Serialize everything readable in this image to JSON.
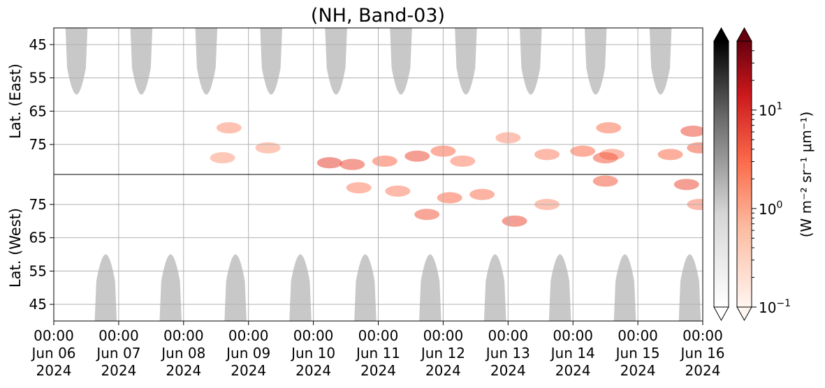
{
  "chart_data": {
    "type": "heatmap",
    "title": "(NH, Band-03)",
    "x_axis": {
      "range": [
        "2024-06-06 00:00",
        "2024-06-16 00:00"
      ],
      "ticks": [
        {
          "line1": "00:00",
          "line2": "Jun 06",
          "line3": "2024"
        },
        {
          "line1": "00:00",
          "line2": "Jun 07",
          "line3": "2024"
        },
        {
          "line1": "00:00",
          "line2": "Jun 08",
          "line3": "2024"
        },
        {
          "line1": "00:00",
          "line2": "Jun 09",
          "line3": "2024"
        },
        {
          "line1": "00:00",
          "line2": "Jun 10",
          "line3": "2024"
        },
        {
          "line1": "00:00",
          "line2": "Jun 11",
          "line3": "2024"
        },
        {
          "line1": "00:00",
          "line2": "Jun 12",
          "line3": "2024"
        },
        {
          "line1": "00:00",
          "line2": "Jun 13",
          "line3": "2024"
        },
        {
          "line1": "00:00",
          "line2": "Jun 14",
          "line3": "2024"
        },
        {
          "line1": "00:00",
          "line2": "Jun 15",
          "line3": "2024"
        },
        {
          "line1": "00:00",
          "line2": "Jun 16",
          "line3": "2024"
        }
      ]
    },
    "panels": [
      {
        "name": "east",
        "ylabel": "Lat. (East)",
        "ylim": [
          40,
          84
        ],
        "ticks": [
          "45",
          "55",
          "65",
          "75"
        ],
        "tick_values": [
          45,
          55,
          65,
          75
        ]
      },
      {
        "name": "west",
        "ylabel": "Lat. (West)",
        "ylim": [
          84,
          40
        ],
        "ticks": [
          "75",
          "65",
          "55",
          "45"
        ],
        "tick_values": [
          75,
          65,
          55,
          45
        ]
      }
    ],
    "grid": true,
    "colorbar": {
      "label": "(W m⁻² sr⁻¹ μm⁻¹)",
      "scale": "log",
      "range": [
        0.1,
        50
      ],
      "tick_labels": [
        {
          "base": "10",
          "exp": "1",
          "value": 10
        },
        {
          "base": "10",
          "exp": "0",
          "value": 1
        },
        {
          "base": "10",
          "exp": "−1",
          "value": 0.1
        }
      ],
      "colormaps": [
        "Greys",
        "Reds"
      ],
      "extend": "both"
    },
    "dark_regions": {
      "color": "#c8c8c8",
      "east_days": [
        0.35,
        1.35,
        2.35,
        3.35,
        4.35,
        5.35,
        6.35,
        7.35,
        8.35,
        9.35
      ],
      "west_days": [
        0.8,
        1.8,
        2.8,
        3.8,
        4.8,
        5.8,
        6.8,
        7.8,
        8.8,
        9.8
      ],
      "polar_edge_lat": 60,
      "half_width_days": 0.17
    },
    "emission_clusters": [
      {
        "panel": "east",
        "day": 4.25,
        "lat": 80.5,
        "value": 6
      },
      {
        "panel": "east",
        "day": 4.6,
        "lat": 81,
        "value": 5
      },
      {
        "panel": "east",
        "day": 5.1,
        "lat": 80,
        "value": 3
      },
      {
        "panel": "east",
        "day": 5.6,
        "lat": 78.5,
        "value": 5
      },
      {
        "panel": "east",
        "day": 6.0,
        "lat": 77,
        "value": 3
      },
      {
        "panel": "east",
        "day": 6.3,
        "lat": 80,
        "value": 2
      },
      {
        "panel": "east",
        "day": 7.0,
        "lat": 73,
        "value": 1.5
      },
      {
        "panel": "east",
        "day": 7.6,
        "lat": 78,
        "value": 2
      },
      {
        "panel": "east",
        "day": 8.15,
        "lat": 77,
        "value": 3
      },
      {
        "panel": "east",
        "day": 8.6,
        "lat": 78,
        "value": 2
      },
      {
        "panel": "east",
        "day": 8.5,
        "lat": 79,
        "value": 4
      },
      {
        "panel": "east",
        "day": 8.55,
        "lat": 70,
        "value": 2.5
      },
      {
        "panel": "east",
        "day": 9.5,
        "lat": 78,
        "value": 3
      },
      {
        "panel": "east",
        "day": 9.85,
        "lat": 71,
        "value": 5
      },
      {
        "panel": "east",
        "day": 9.95,
        "lat": 76,
        "value": 4
      },
      {
        "panel": "east",
        "day": 2.7,
        "lat": 70,
        "value": 1.5
      },
      {
        "panel": "east",
        "day": 2.6,
        "lat": 79,
        "value": 1.2
      },
      {
        "panel": "east",
        "day": 3.3,
        "lat": 76,
        "value": 1.2
      },
      {
        "panel": "west",
        "day": 4.7,
        "lat": 80,
        "value": 2
      },
      {
        "panel": "west",
        "day": 5.3,
        "lat": 79,
        "value": 2
      },
      {
        "panel": "west",
        "day": 5.75,
        "lat": 72,
        "value": 4
      },
      {
        "panel": "west",
        "day": 6.1,
        "lat": 77,
        "value": 3
      },
      {
        "panel": "west",
        "day": 6.6,
        "lat": 78,
        "value": 2.5
      },
      {
        "panel": "west",
        "day": 7.1,
        "lat": 70,
        "value": 5
      },
      {
        "panel": "west",
        "day": 7.6,
        "lat": 75,
        "value": 1.5
      },
      {
        "panel": "west",
        "day": 8.5,
        "lat": 82,
        "value": 4
      },
      {
        "panel": "west",
        "day": 9.75,
        "lat": 81,
        "value": 5
      },
      {
        "panel": "west",
        "day": 9.95,
        "lat": 75,
        "value": 2
      }
    ]
  }
}
